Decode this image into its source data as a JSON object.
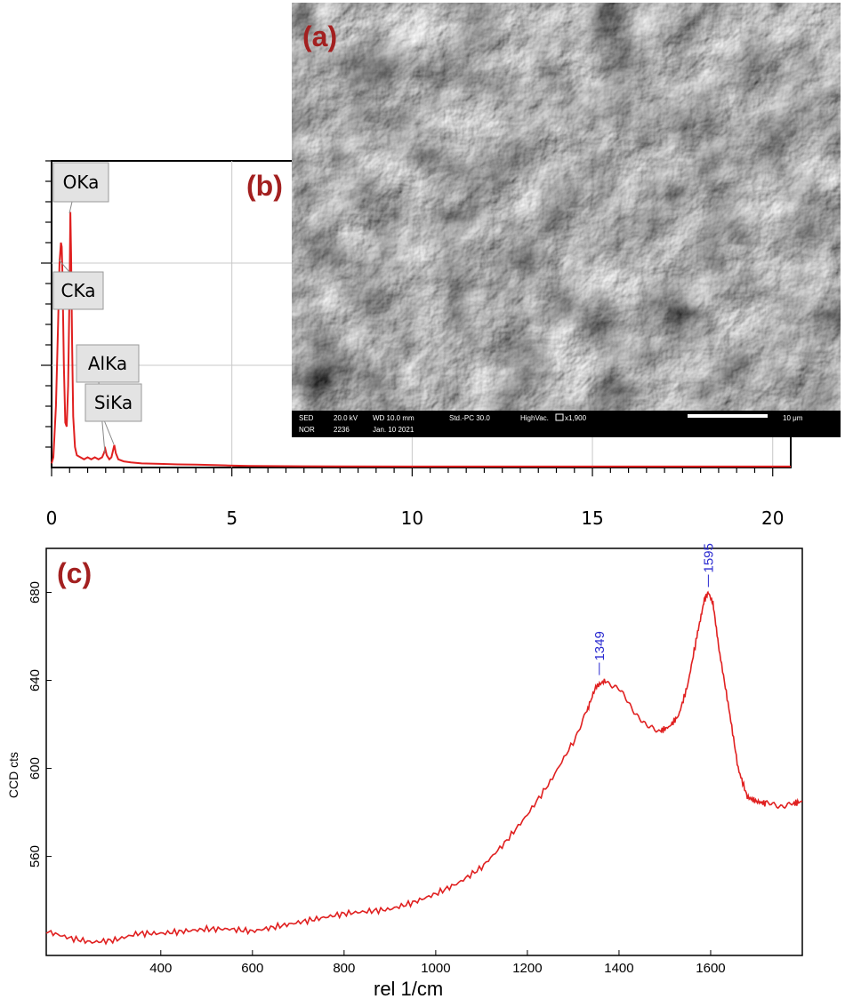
{
  "panels": {
    "a": "(a)",
    "b": "(b)",
    "c": "(c)"
  },
  "sem": {
    "row1": [
      "SED",
      "20.0 kV",
      "WD 10.0 mm",
      "Std.-PC 30.0",
      "HighVac.",
      "x1,900",
      "10 μm"
    ],
    "row2": [
      "NOR",
      "2236",
      "Jan. 10 2021"
    ],
    "scale_bar": "10 μm"
  },
  "colors": {
    "line": "#e02020",
    "panel_label": "#a32020",
    "peak_label": "#2a2ad0"
  },
  "chart_data": [
    {
      "id": "b",
      "type": "line",
      "title": "",
      "xlabel": "",
      "ylabel": "",
      "xlim": [
        0,
        20.5
      ],
      "ylim": [
        0,
        1.5
      ],
      "xticks": [
        0,
        5,
        10,
        15,
        20
      ],
      "grid": true,
      "peaks": [
        {
          "label": "OKa",
          "x": 0.52
        },
        {
          "label": "CKa",
          "x": 0.28
        },
        {
          "label": "AlKa",
          "x": 1.49
        },
        {
          "label": "SiKa",
          "x": 1.74
        }
      ],
      "series": [
        {
          "x": [
            0,
            0.05,
            0.12,
            0.18,
            0.22,
            0.26,
            0.28,
            0.3,
            0.34,
            0.38,
            0.42,
            0.46,
            0.5,
            0.52,
            0.54,
            0.57,
            0.6,
            0.65,
            0.7,
            0.8,
            0.9,
            1.0,
            1.1,
            1.2,
            1.3,
            1.4,
            1.45,
            1.49,
            1.53,
            1.6,
            1.66,
            1.7,
            1.74,
            1.78,
            1.85,
            2.0,
            2.2,
            2.5,
            3.0,
            3.5,
            4.0,
            4.5,
            4.9,
            5.5,
            7,
            10,
            15,
            20.5
          ],
          "y": [
            0.02,
            0.05,
            0.3,
            0.7,
            1.0,
            1.1,
            1.08,
            0.95,
            0.5,
            0.22,
            0.2,
            0.4,
            0.9,
            1.25,
            1.05,
            0.6,
            0.25,
            0.1,
            0.06,
            0.05,
            0.04,
            0.05,
            0.04,
            0.05,
            0.04,
            0.05,
            0.07,
            0.09,
            0.06,
            0.04,
            0.05,
            0.08,
            0.11,
            0.07,
            0.04,
            0.03,
            0.025,
            0.02,
            0.018,
            0.015,
            0.014,
            0.012,
            0.01,
            0.008,
            0.006,
            0.005,
            0.005,
            0.005
          ]
        }
      ]
    },
    {
      "id": "c",
      "type": "line",
      "title": "",
      "xlabel": "rel 1/cm",
      "ylabel": "CCD cts",
      "xlim": [
        150,
        1800
      ],
      "ylim": [
        515,
        700
      ],
      "xticks": [
        400,
        600,
        800,
        1000,
        1200,
        1400,
        1600
      ],
      "yticks": [
        560,
        600,
        640,
        680
      ],
      "peaks": [
        {
          "label": "1349",
          "x": 1349
        },
        {
          "label": "1595",
          "x": 1595
        }
      ],
      "series": [
        {
          "x": [
            150,
            200,
            250,
            300,
            350,
            400,
            450,
            500,
            550,
            600,
            650,
            700,
            750,
            800,
            850,
            900,
            950,
            1000,
            1050,
            1100,
            1150,
            1200,
            1250,
            1300,
            1330,
            1349,
            1370,
            1400,
            1430,
            1460,
            1490,
            1510,
            1530,
            1550,
            1570,
            1585,
            1595,
            1605,
            1620,
            1640,
            1660,
            1680,
            1700,
            1720,
            1750,
            1780,
            1800
          ],
          "y": [
            526,
            523,
            521,
            522,
            525,
            525,
            526,
            527,
            527,
            526,
            528,
            530,
            532,
            534,
            535,
            536,
            539,
            543,
            548,
            555,
            566,
            579,
            594,
            612,
            626,
            637,
            640,
            636,
            627,
            619,
            617,
            619,
            624,
            638,
            660,
            676,
            680,
            675,
            652,
            627,
            600,
            587,
            585,
            584,
            583,
            584,
            585
          ]
        }
      ]
    }
  ]
}
